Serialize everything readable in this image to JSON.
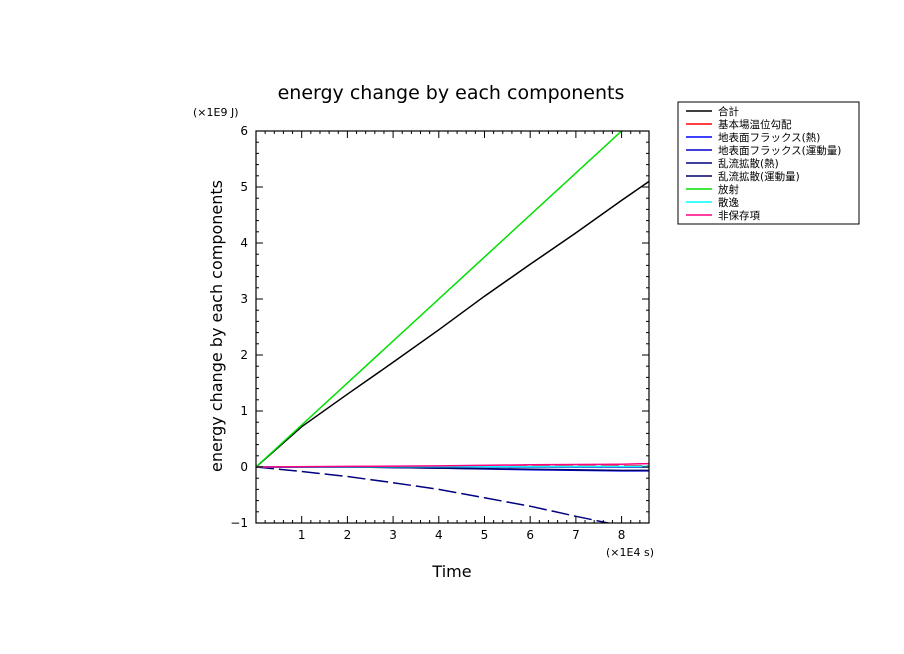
{
  "chart_data": {
    "type": "line",
    "title": "energy change by each components",
    "xlabel": "Time",
    "ylabel": "energy change by each components",
    "x_unit": "(×1E4 s)",
    "y_unit": "(×1E9 J)",
    "xlim": [
      0,
      8.6
    ],
    "ylim": [
      -1,
      6
    ],
    "x_ticks": [
      1,
      2,
      3,
      4,
      5,
      6,
      7,
      8
    ],
    "y_ticks": [
      -1,
      0,
      1,
      2,
      3,
      4,
      5,
      6
    ],
    "grid": false,
    "legend_position": "right, outside",
    "series": [
      {
        "name": "合計",
        "color": "#000000",
        "dash": "solid",
        "x": [
          0,
          1,
          2,
          3,
          4,
          5,
          6,
          7,
          8,
          8.6
        ],
        "y": [
          0,
          0.72,
          1.3,
          1.87,
          2.45,
          3.05,
          3.62,
          4.18,
          4.76,
          5.1
        ]
      },
      {
        "name": "基本場温位勾配",
        "color": "#ff0000",
        "dash": "dashed",
        "x": [
          0,
          2,
          4,
          6,
          8,
          8.6
        ],
        "y": [
          0,
          0,
          0,
          0.01,
          0.02,
          0.02
        ]
      },
      {
        "name": "地表面フラックス(熱)",
        "color": "#0000ff",
        "dash": "solid",
        "x": [
          0,
          2,
          4,
          6,
          8,
          8.6
        ],
        "y": [
          0,
          0,
          -0.02,
          -0.05,
          -0.07,
          -0.07
        ]
      },
      {
        "name": "地表面フラックス(運動量)",
        "color": "#0000cc",
        "dash": "solid",
        "x": [
          0,
          2,
          4,
          6,
          8,
          8.6
        ],
        "y": [
          0,
          0,
          0,
          0,
          0,
          0
        ]
      },
      {
        "name": "乱流拡散(熱)",
        "color": "#000080",
        "dash": "dashed",
        "x": [
          0,
          1,
          2,
          3,
          4,
          5,
          6,
          7,
          8,
          8.6
        ],
        "y": [
          0,
          -0.08,
          -0.17,
          -0.28,
          -0.4,
          -0.55,
          -0.7,
          -0.88,
          -1.05,
          -1.17
        ]
      },
      {
        "name": "乱流拡散(運動量)",
        "color": "#000060",
        "dash": "solid",
        "x": [
          0,
          2,
          4,
          6,
          8,
          8.6
        ],
        "y": [
          0,
          0,
          -0.02,
          -0.04,
          -0.06,
          -0.06
        ]
      },
      {
        "name": "放射",
        "color": "#00e000",
        "dash": "solid",
        "x": [
          0,
          8.6
        ],
        "y": [
          0,
          6.45
        ]
      },
      {
        "name": "散逸",
        "color": "#00ffff",
        "dash": "solid",
        "x": [
          0,
          8.6
        ],
        "y": [
          0,
          0.01
        ]
      },
      {
        "name": "非保存項",
        "color": "#ff0080",
        "dash": "solid",
        "x": [
          0,
          2,
          4,
          6,
          8,
          8.6
        ],
        "y": [
          0,
          0.01,
          0.02,
          0.04,
          0.05,
          0.06
        ]
      }
    ]
  }
}
